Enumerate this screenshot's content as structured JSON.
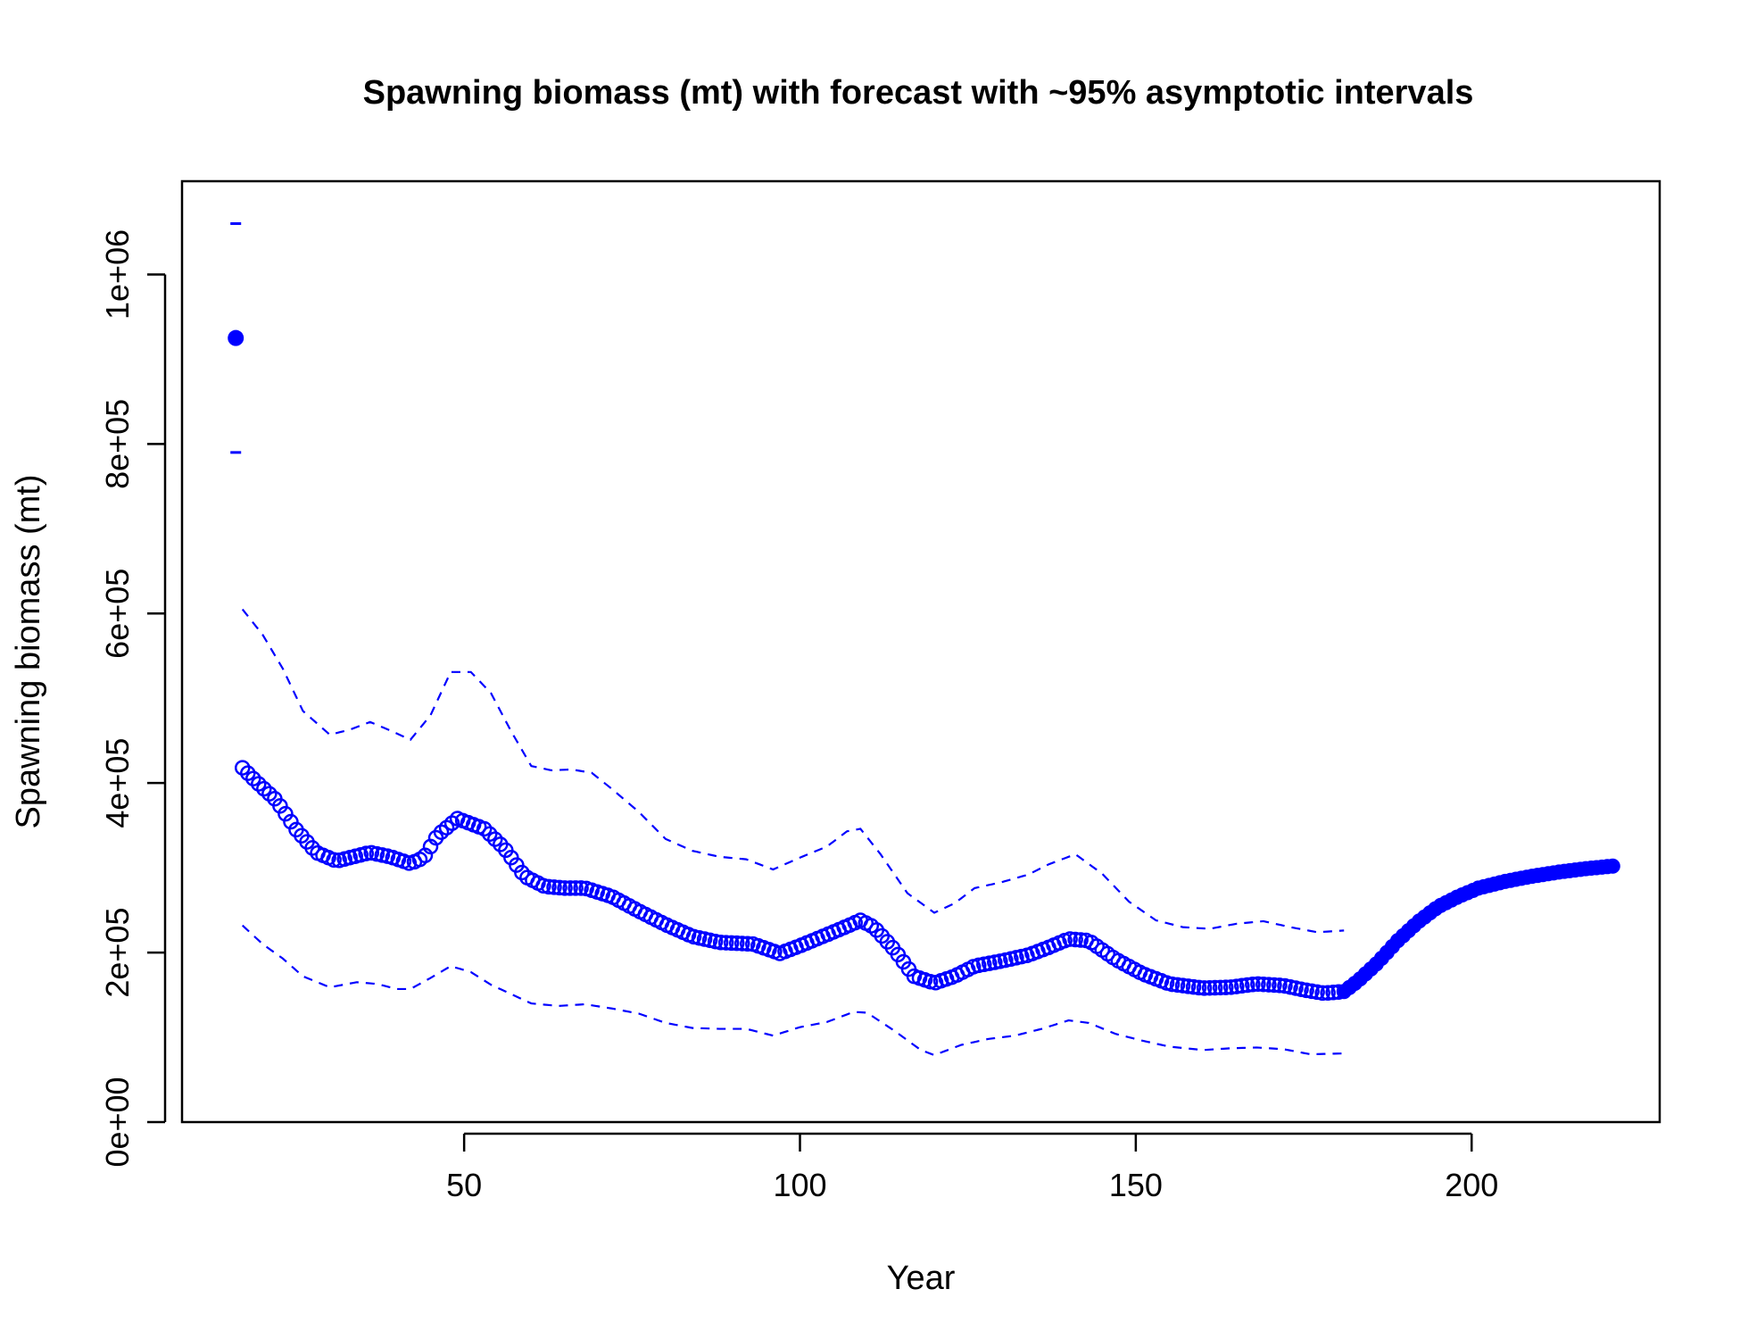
{
  "chart_data": {
    "type": "scatter",
    "title": "Spawning biomass (mt) with forecast with ~95% asymptotic intervals",
    "xlabel": "Year",
    "ylabel": "Spawning biomass (mt)",
    "xlim": [
      8,
      228
    ],
    "ylim": [
      0,
      1110000
    ],
    "x_ticks": [
      {
        "value": 50,
        "label": "50"
      },
      {
        "value": 100,
        "label": "100"
      },
      {
        "value": 150,
        "label": "150"
      },
      {
        "value": 200,
        "label": "200"
      }
    ],
    "y_ticks": [
      {
        "value": 0,
        "label": "0e+00"
      },
      {
        "value": 200000,
        "label": "2e+05"
      },
      {
        "value": 400000,
        "label": "4e+05"
      },
      {
        "value": 600000,
        "label": "6e+05"
      },
      {
        "value": 800000,
        "label": "8e+05"
      },
      {
        "value": 1000000,
        "label": "1e+06"
      }
    ],
    "grid": false,
    "legend": "none",
    "color": "#0000FF",
    "virgin": {
      "x": 16,
      "value": 925000,
      "lower": 790000,
      "upper": 1060000
    },
    "estimate_knots": [
      [
        17,
        418000
      ],
      [
        19,
        402000
      ],
      [
        22,
        380000
      ],
      [
        25,
        345000
      ],
      [
        28,
        318000
      ],
      [
        31,
        308000
      ],
      [
        33,
        312000
      ],
      [
        36,
        318000
      ],
      [
        39,
        313000
      ],
      [
        42,
        305000
      ],
      [
        44,
        312000
      ],
      [
        46,
        338000
      ],
      [
        49,
        358000
      ],
      [
        53,
        346000
      ],
      [
        56,
        323000
      ],
      [
        59,
        290000
      ],
      [
        62,
        278000
      ],
      [
        65,
        276000
      ],
      [
        68,
        276000
      ],
      [
        72,
        266000
      ],
      [
        76,
        249000
      ],
      [
        80,
        233000
      ],
      [
        84,
        219000
      ],
      [
        88,
        212000
      ],
      [
        93,
        210000
      ],
      [
        97,
        199000
      ],
      [
        100,
        208000
      ],
      [
        104,
        221000
      ],
      [
        107,
        231000
      ],
      [
        109,
        238000
      ],
      [
        111,
        230000
      ],
      [
        114,
        204000
      ],
      [
        117,
        172000
      ],
      [
        120,
        164000
      ],
      [
        123,
        172000
      ],
      [
        126,
        184000
      ],
      [
        130,
        190000
      ],
      [
        134,
        197000
      ],
      [
        137,
        206000
      ],
      [
        140,
        216000
      ],
      [
        143,
        214000
      ],
      [
        147,
        192000
      ],
      [
        151,
        175000
      ],
      [
        155,
        163000
      ],
      [
        160,
        158000
      ],
      [
        164,
        159000
      ],
      [
        168,
        163000
      ],
      [
        172,
        161000
      ],
      [
        175,
        156000
      ],
      [
        178,
        152000
      ],
      [
        181,
        154000
      ]
    ],
    "forecast_knots": [
      [
        181,
        154000
      ],
      [
        183,
        166000
      ],
      [
        186,
        188000
      ],
      [
        189,
        214000
      ],
      [
        192,
        236000
      ],
      [
        195,
        254000
      ],
      [
        198,
        266000
      ],
      [
        201,
        276000
      ],
      [
        205,
        284000
      ],
      [
        209,
        290000
      ],
      [
        213,
        295000
      ],
      [
        217,
        299000
      ],
      [
        221,
        302000
      ]
    ],
    "upper_ci_knots": [
      [
        17,
        605000
      ],
      [
        20,
        575000
      ],
      [
        23,
        535000
      ],
      [
        26,
        485000
      ],
      [
        30,
        457000
      ],
      [
        33,
        463000
      ],
      [
        36,
        472000
      ],
      [
        39,
        462000
      ],
      [
        42,
        451000
      ],
      [
        45,
        480000
      ],
      [
        48,
        531000
      ],
      [
        51,
        531000
      ],
      [
        54,
        506000
      ],
      [
        57,
        461000
      ],
      [
        60,
        420000
      ],
      [
        63,
        415000
      ],
      [
        66,
        416000
      ],
      [
        69,
        412000
      ],
      [
        72,
        393000
      ],
      [
        76,
        366000
      ],
      [
        80,
        334000
      ],
      [
        84,
        320000
      ],
      [
        88,
        313000
      ],
      [
        92,
        310000
      ],
      [
        96,
        298000
      ],
      [
        100,
        312000
      ],
      [
        104,
        325000
      ],
      [
        107,
        343000
      ],
      [
        109,
        346000
      ],
      [
        112,
        316000
      ],
      [
        116,
        270000
      ],
      [
        120,
        247000
      ],
      [
        123,
        258000
      ],
      [
        126,
        276000
      ],
      [
        130,
        283000
      ],
      [
        134,
        292000
      ],
      [
        137,
        304000
      ],
      [
        141,
        316000
      ],
      [
        145,
        293000
      ],
      [
        149,
        260000
      ],
      [
        153,
        238000
      ],
      [
        157,
        230000
      ],
      [
        161,
        228000
      ],
      [
        165,
        234000
      ],
      [
        169,
        237000
      ],
      [
        173,
        230000
      ],
      [
        177,
        224000
      ],
      [
        181,
        226000
      ]
    ],
    "lower_ci_knots": [
      [
        17,
        232000
      ],
      [
        20,
        210000
      ],
      [
        23,
        193000
      ],
      [
        26,
        172000
      ],
      [
        30,
        159000
      ],
      [
        34,
        165000
      ],
      [
        37,
        163000
      ],
      [
        40,
        157000
      ],
      [
        42,
        157000
      ],
      [
        45,
        170000
      ],
      [
        48,
        184000
      ],
      [
        51,
        177000
      ],
      [
        54,
        162000
      ],
      [
        57,
        151000
      ],
      [
        60,
        140000
      ],
      [
        64,
        137000
      ],
      [
        68,
        139000
      ],
      [
        72,
        134000
      ],
      [
        76,
        128000
      ],
      [
        80,
        117000
      ],
      [
        84,
        111000
      ],
      [
        88,
        110000
      ],
      [
        92,
        110000
      ],
      [
        96,
        102000
      ],
      [
        100,
        112000
      ],
      [
        104,
        118000
      ],
      [
        108,
        130000
      ],
      [
        110,
        129000
      ],
      [
        114,
        108000
      ],
      [
        118,
        85000
      ],
      [
        120,
        79000
      ],
      [
        124,
        91000
      ],
      [
        128,
        98000
      ],
      [
        132,
        102000
      ],
      [
        136,
        110000
      ],
      [
        140,
        120000
      ],
      [
        143,
        117000
      ],
      [
        147,
        104000
      ],
      [
        151,
        96000
      ],
      [
        155,
        89000
      ],
      [
        160,
        85000
      ],
      [
        164,
        87000
      ],
      [
        168,
        88000
      ],
      [
        172,
        86000
      ],
      [
        176,
        80000
      ],
      [
        181,
        81000
      ]
    ]
  }
}
